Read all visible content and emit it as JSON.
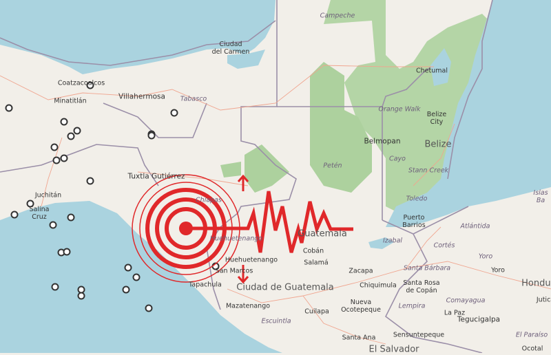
{
  "map": {
    "colors": {
      "land": "#f2efe9",
      "water": "#aad3df",
      "forest": "#add19e",
      "border": "#9b8fa8",
      "road": "#f0a58f",
      "quake": "#e0282a",
      "marker_fill": "#ffffff",
      "marker_stroke": "#333333"
    },
    "labels": {
      "ciudad_del_carmen": "Ciudad\ndel Carmen",
      "campeche": "Campeche",
      "chetumal": "Chetumal",
      "coatzacoalcos": "Coatzacoalcos",
      "minatitlan": "Minatitlán",
      "villahermosa": "Villahermosa",
      "tabasco": "Tabasco",
      "orange_walk": "Orange Walk",
      "belize_city": "Belize\nCity",
      "belmopan": "Belmopan",
      "belize": "Belize",
      "cayo": "Cayo",
      "peten": "Petén",
      "stann_creek": "Stann Creek",
      "tuxtla": "Tuxtla Gutiérrez",
      "juchitan": "Juchitán",
      "salina_cruz": "Salina\nCruz",
      "chiapas": "Chiapas",
      "toledo": "Toledo",
      "islas_bahia": "Islas\nBa",
      "puerto_barrios": "Puerto\nBarrios",
      "atlantida": "Atlántida",
      "izabal": "Izabal",
      "cortes": "Cortés",
      "yoro_region": "Yoro",
      "yoro": "Yoro",
      "honduras": "Hondura",
      "guatemala": "Guatemala",
      "huehuetenango_region": "Huehuetenango",
      "huehuetenango": "Huehuetenango",
      "coban": "Cobán",
      "salama": "Salamá",
      "zacapa": "Zacapa",
      "san_marcos": "San Marcos",
      "tapachula": "Tapachula",
      "ciudad_de_guatemala": "Ciudad de Guatemala",
      "chiquimula": "Chiquimula",
      "santa_barbara": "Santa Bárbara",
      "santa_rosa": "Santa Rosa\nde Copán",
      "mazatenango": "Mazatenango",
      "nueva_ocotepeque": "Nueva\nOcotepeque",
      "lempira": "Lempira",
      "comayagua": "Comayagua",
      "juticalpa": "Jutica",
      "escuintla": "Escuintla",
      "cuilapa": "Cuilapa",
      "la_paz": "La Paz",
      "tegucigalpa": "Tegucigalpa",
      "el_paraiso": "El Paraíso",
      "santa_ana": "Santa Ana",
      "sensuntepeque": "Sensuntepeque",
      "el_salvador": "El Salvador",
      "ocotal": "Ocotal"
    },
    "overlay": {
      "icon": "earthquake-seismograph-icon",
      "arrows": [
        "arrow-up-icon",
        "arrow-down-icon"
      ]
    },
    "earthquake_markers_count_visible": 26
  }
}
